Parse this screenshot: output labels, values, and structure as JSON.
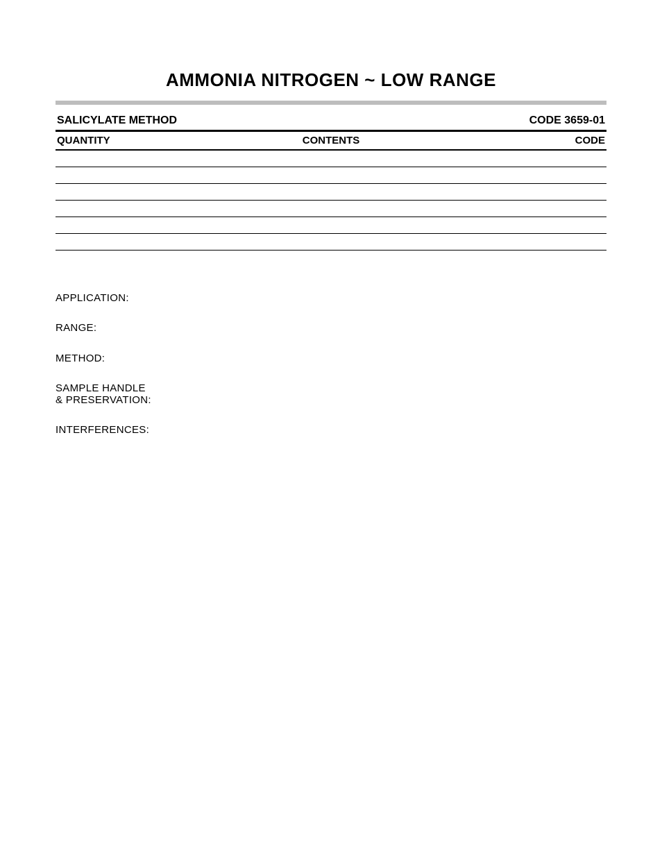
{
  "title": "AMMONIA NITROGEN ~ LOW RANGE",
  "method_name": "SALICYLATE METHOD",
  "code_label": "CODE 3659-01",
  "table": {
    "headers": {
      "qty": "QUANTITY",
      "contents": "CONTENTS",
      "code": "CODE"
    },
    "rows": [
      {
        "qty": "",
        "contents": "",
        "code": "",
        "indent": false
      },
      {
        "qty": "",
        "contents": "",
        "code": "",
        "indent": false
      },
      {
        "qty": "",
        "contents": "",
        "code": "",
        "indent": true
      },
      {
        "qty": "",
        "contents": "",
        "code": "",
        "indent": true
      },
      {
        "qty": "",
        "contents": "",
        "code": "",
        "indent": true
      },
      {
        "qty": "",
        "contents": "",
        "code": "",
        "indent": true
      }
    ]
  },
  "specs": [
    {
      "label": "APPLICATION:",
      "value": ""
    },
    {
      "label": "RANGE:",
      "value": ""
    },
    {
      "label": "METHOD:",
      "value": ""
    },
    {
      "label": "SAMPLE HANDLE\n& PRESERVATION:",
      "value": ""
    },
    {
      "label": "INTERFERENCES:",
      "value": ""
    }
  ],
  "colors": {
    "rule": "#bdbdbd",
    "text": "#000000",
    "bg": "#ffffff"
  }
}
